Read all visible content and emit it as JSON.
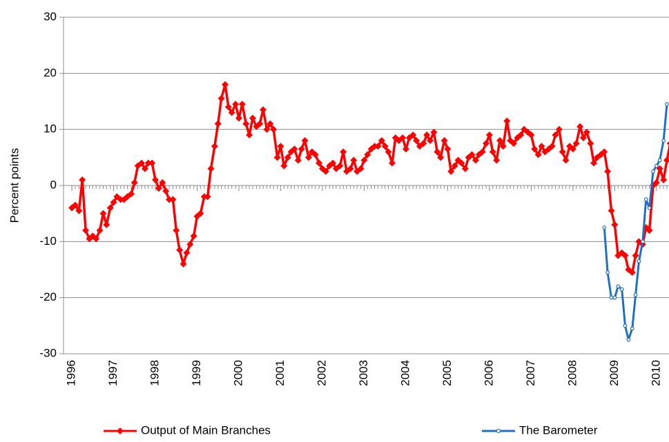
{
  "chart_data": {
    "type": "line",
    "ylabel": "Percent points",
    "xlim": [
      1995.8,
      2010.3
    ],
    "ylim": [
      -30,
      30
    ],
    "xticks": [
      1996,
      1997,
      1998,
      1999,
      2000,
      2001,
      2002,
      2003,
      2004,
      2005,
      2006,
      2007,
      2008,
      2009,
      2010
    ],
    "yticks": [
      -30,
      -20,
      -10,
      0,
      10,
      20,
      30
    ],
    "grid": true,
    "legend": "bottom",
    "series": [
      {
        "name": "Output of Main Branches",
        "color": "#ff0000",
        "marker": "diamond",
        "x": [
          1996.0,
          1996.08,
          1996.17,
          1996.25,
          1996.33,
          1996.42,
          1996.5,
          1996.58,
          1996.67,
          1996.75,
          1996.83,
          1996.92,
          1997.0,
          1997.08,
          1997.17,
          1997.25,
          1997.33,
          1997.42,
          1997.5,
          1997.58,
          1997.67,
          1997.75,
          1997.83,
          1997.92,
          1998.0,
          1998.08,
          1998.17,
          1998.25,
          1998.33,
          1998.42,
          1998.5,
          1998.58,
          1998.67,
          1998.75,
          1998.83,
          1998.92,
          1999.0,
          1999.08,
          1999.17,
          1999.25,
          1999.33,
          1999.42,
          1999.5,
          1999.58,
          1999.67,
          1999.75,
          1999.83,
          1999.92,
          2000.0,
          2000.08,
          2000.17,
          2000.25,
          2000.33,
          2000.42,
          2000.5,
          2000.58,
          2000.67,
          2000.75,
          2000.83,
          2000.92,
          2001.0,
          2001.08,
          2001.17,
          2001.25,
          2001.33,
          2001.42,
          2001.5,
          2001.58,
          2001.67,
          2001.75,
          2001.83,
          2001.92,
          2002.0,
          2002.08,
          2002.17,
          2002.25,
          2002.33,
          2002.42,
          2002.5,
          2002.58,
          2002.67,
          2002.75,
          2002.83,
          2002.92,
          2003.0,
          2003.08,
          2003.17,
          2003.25,
          2003.33,
          2003.42,
          2003.5,
          2003.58,
          2003.67,
          2003.75,
          2003.83,
          2003.92,
          2004.0,
          2004.08,
          2004.17,
          2004.25,
          2004.33,
          2004.42,
          2004.5,
          2004.58,
          2004.67,
          2004.75,
          2004.83,
          2004.92,
          2005.0,
          2005.08,
          2005.17,
          2005.25,
          2005.33,
          2005.42,
          2005.5,
          2005.58,
          2005.67,
          2005.75,
          2005.83,
          2005.92,
          2006.0,
          2006.08,
          2006.17,
          2006.25,
          2006.33,
          2006.42,
          2006.5,
          2006.58,
          2006.67,
          2006.75,
          2006.83,
          2006.92,
          2007.0,
          2007.08,
          2007.17,
          2007.25,
          2007.33,
          2007.42,
          2007.5,
          2007.58,
          2007.67,
          2007.75,
          2007.83,
          2007.92,
          2008.0,
          2008.08,
          2008.17,
          2008.25,
          2008.33,
          2008.42,
          2008.5,
          2008.58,
          2008.67,
          2008.75,
          2008.83,
          2008.92,
          2009.0,
          2009.08,
          2009.17,
          2009.25,
          2009.33,
          2009.42,
          2009.5,
          2009.58,
          2009.67,
          2009.75,
          2009.83,
          2009.92,
          2010.0,
          2010.08,
          2010.17,
          2010.25,
          2010.33
        ],
        "values": [
          -4,
          -3.5,
          -4.5,
          1,
          -8,
          -9.5,
          -9,
          -9.5,
          -8,
          -5,
          -7,
          -4,
          -3,
          -2,
          -2.5,
          -2.5,
          -2,
          -1.5,
          0.5,
          3.5,
          4,
          3,
          4,
          4,
          1,
          -0.5,
          0.5,
          -1,
          -2.5,
          -2.5,
          -8,
          -11.5,
          -14,
          -12,
          -10.5,
          -9,
          -5.5,
          -5,
          -2,
          -2,
          3,
          7,
          11,
          15.5,
          18,
          14,
          13,
          14.5,
          12,
          14.5,
          11,
          9,
          12,
          10.5,
          11,
          13.5,
          10,
          11,
          10,
          5,
          7,
          3.5,
          5,
          6,
          6.5,
          4.5,
          6.5,
          8,
          5,
          6,
          5.5,
          4,
          3,
          2.5,
          3.5,
          4,
          3,
          3.5,
          6,
          2.5,
          3,
          4.5,
          2.5,
          3,
          4.5,
          5.5,
          6.5,
          7,
          7,
          8,
          7,
          6,
          4,
          8.5,
          8,
          8.5,
          6.5,
          8.5,
          9,
          8,
          7,
          7.5,
          9,
          8,
          9.5,
          6,
          5,
          8,
          6.5,
          2.5,
          3.5,
          4.5,
          4,
          3,
          5,
          5.5,
          4.5,
          5.5,
          6,
          7.5,
          9,
          6,
          4.5,
          8,
          7,
          11.5,
          8,
          7.5,
          8.5,
          9,
          10,
          9.5,
          9,
          6.5,
          5.5,
          7,
          6,
          6.5,
          7,
          9,
          10,
          6,
          4.5,
          7,
          6.5,
          7.5,
          10.5,
          8.5,
          9.5,
          7.5,
          4,
          5,
          5.5,
          6,
          2.5,
          -4.5,
          -7,
          -12.5,
          -12,
          -12.5,
          -15,
          -15.5,
          -12.5,
          -10,
          -10.5,
          -7.5,
          -8,
          0,
          0.5,
          3,
          1,
          4.5,
          7.5
        ]
      },
      {
        "name": "The Barometer",
        "color": "#1f6fc5",
        "marker": "circle",
        "x": [
          2008.75,
          2008.83,
          2008.92,
          2009.0,
          2009.08,
          2009.17,
          2009.25,
          2009.33,
          2009.42,
          2009.5,
          2009.58,
          2009.67,
          2009.75,
          2009.83,
          2009.92,
          2010.0,
          2010.08,
          2010.17,
          2010.25
        ],
        "values": [
          -7.5,
          -15.5,
          -20,
          -20,
          -18,
          -18.5,
          -25,
          -27.5,
          -25.5,
          -19.5,
          -13.5,
          -10,
          -2.5,
          -4,
          2.5,
          3.5,
          4.5,
          8,
          14.5
        ]
      }
    ]
  }
}
